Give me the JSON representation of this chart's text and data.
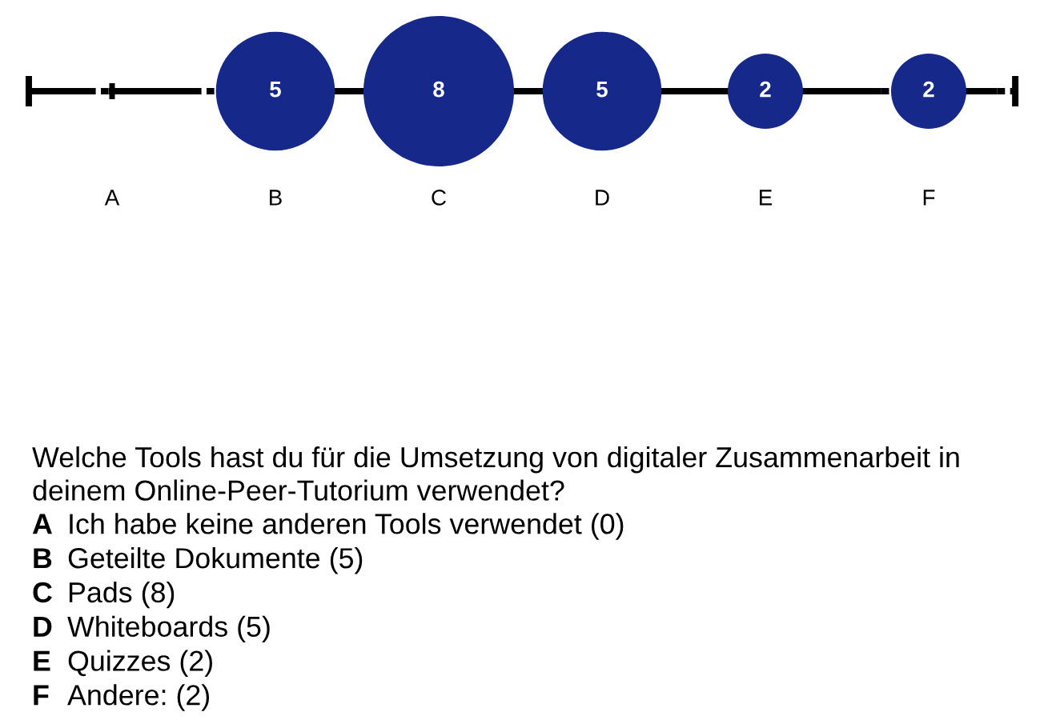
{
  "chart_data": {
    "type": "other",
    "categories": [
      "A",
      "B",
      "C",
      "D",
      "E",
      "F"
    ],
    "series": [
      {
        "color": "#17288b",
        "values": [
          null,
          5,
          8,
          5,
          2,
          2
        ],
        "value_labels": [
          null,
          "5",
          "8",
          "5",
          "2",
          "2"
        ]
      }
    ],
    "annotations": [
      "Welche Tools hast du für die Umsetzung von digitaler Zusammenarbeit in deinem Online-Peer-Tutorium verwendet?",
      "A Ich habe keine anderen Tools verwendet (0)",
      "B Geteilte Dokumente (5)",
      "C Pads (8)",
      "D Whiteboards (5)",
      "E Quizzes (2)",
      "F Andere: (2)"
    ]
  }
}
